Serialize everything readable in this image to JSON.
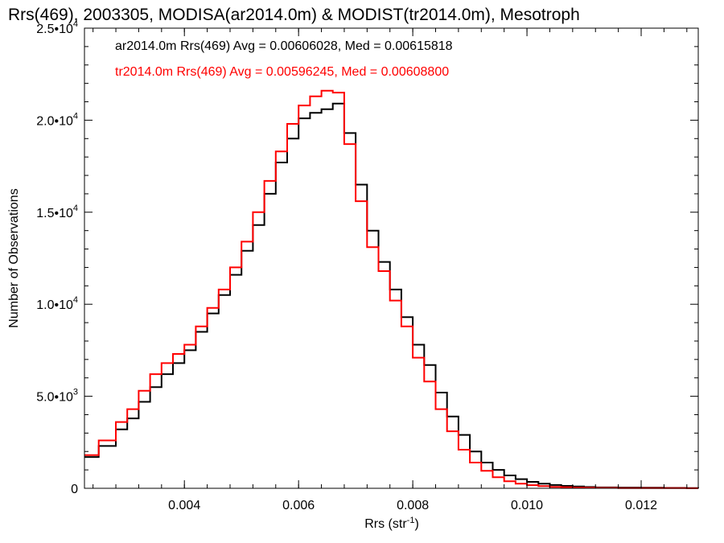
{
  "chart_data": {
    "type": "line",
    "title": "Rrs(469), 2003305, MODISA(ar2014.0m) & MODIST(tr2014.0m), Mesotroph",
    "xlabel": "Rrs (str",
    "xlabel_sup": "-1",
    "xlabel_end": ")",
    "ylabel": "Number of Observations",
    "xlim": [
      0.00225,
      0.013
    ],
    "ylim": [
      0,
      25000
    ],
    "grid": false,
    "legend_position": "top-left",
    "x_ticks": [
      {
        "value": 0.004,
        "label": "0.004"
      },
      {
        "value": 0.006,
        "label": "0.006"
      },
      {
        "value": 0.008,
        "label": "0.008"
      },
      {
        "value": 0.01,
        "label": "0.010"
      },
      {
        "value": 0.012,
        "label": "0.012"
      }
    ],
    "y_ticks": [
      {
        "value": 0,
        "base": "0",
        "exp": ""
      },
      {
        "value": 5000,
        "base": "5.0•10",
        "exp": "3"
      },
      {
        "value": 10000,
        "base": "1.0•10",
        "exp": "4"
      },
      {
        "value": 15000,
        "base": "1.5•10",
        "exp": "4"
      },
      {
        "value": 20000,
        "base": "2.0•10",
        "exp": "4"
      },
      {
        "value": 25000,
        "base": "2.5•10",
        "exp": "4"
      }
    ],
    "series": [
      {
        "name": "ar2014.0m Rrs(469)",
        "legend": "ar2014.0m Rrs(469) Avg = 0.00606028, Med = 0.00615818",
        "color": "#000000",
        "x": [
          0.00225,
          0.0025,
          0.0028,
          0.003,
          0.0032,
          0.0034,
          0.0036,
          0.0038,
          0.004,
          0.0042,
          0.0044,
          0.0046,
          0.0048,
          0.005,
          0.0052,
          0.0054,
          0.0056,
          0.0058,
          0.006,
          0.0062,
          0.0064,
          0.0066,
          0.0068,
          0.007,
          0.0072,
          0.0074,
          0.0076,
          0.0078,
          0.008,
          0.0082,
          0.0084,
          0.0086,
          0.0088,
          0.009,
          0.0092,
          0.0094,
          0.0096,
          0.0098,
          0.01,
          0.0102,
          0.0104,
          0.0106,
          0.0108,
          0.011,
          0.0112,
          0.0116,
          0.012,
          0.0124,
          0.0128,
          0.013
        ],
        "y": [
          1700,
          2300,
          3200,
          3800,
          4700,
          5500,
          6200,
          6800,
          7500,
          8500,
          9500,
          10500,
          11600,
          12900,
          14300,
          16000,
          17700,
          19000,
          20100,
          20400,
          20600,
          20900,
          19300,
          16500,
          14000,
          12300,
          10800,
          9300,
          7800,
          6700,
          5200,
          3900,
          2900,
          2000,
          1400,
          1000,
          700,
          500,
          350,
          250,
          180,
          130,
          100,
          70,
          50,
          40,
          30,
          20,
          15,
          10
        ]
      },
      {
        "name": "tr2014.0m Rrs(469)",
        "legend": "tr2014.0m Rrs(469) Avg = 0.00596245, Med = 0.00608800",
        "color": "#ff0000",
        "x": [
          0.00225,
          0.0025,
          0.0028,
          0.003,
          0.0032,
          0.0034,
          0.0036,
          0.0038,
          0.004,
          0.0042,
          0.0044,
          0.0046,
          0.0048,
          0.005,
          0.0052,
          0.0054,
          0.0056,
          0.0058,
          0.006,
          0.0062,
          0.0064,
          0.0066,
          0.0068,
          0.007,
          0.0072,
          0.0074,
          0.0076,
          0.0078,
          0.008,
          0.0082,
          0.0084,
          0.0086,
          0.0088,
          0.009,
          0.0092,
          0.0094,
          0.0096,
          0.0098,
          0.01,
          0.0102,
          0.0104,
          0.0106,
          0.0108,
          0.011,
          0.0112,
          0.0116,
          0.012,
          0.0124,
          0.0128,
          0.013
        ],
        "y": [
          1800,
          2600,
          3600,
          4300,
          5300,
          6200,
          6800,
          7300,
          7800,
          8800,
          9800,
          10800,
          12000,
          13400,
          15000,
          16700,
          18300,
          19800,
          20800,
          21300,
          21600,
          21500,
          18700,
          15600,
          13100,
          11800,
          10200,
          8800,
          7100,
          5800,
          4300,
          3100,
          2100,
          1400,
          950,
          600,
          380,
          250,
          170,
          120,
          80,
          60,
          40,
          30,
          20,
          15,
          10,
          8,
          5,
          3
        ]
      }
    ]
  }
}
